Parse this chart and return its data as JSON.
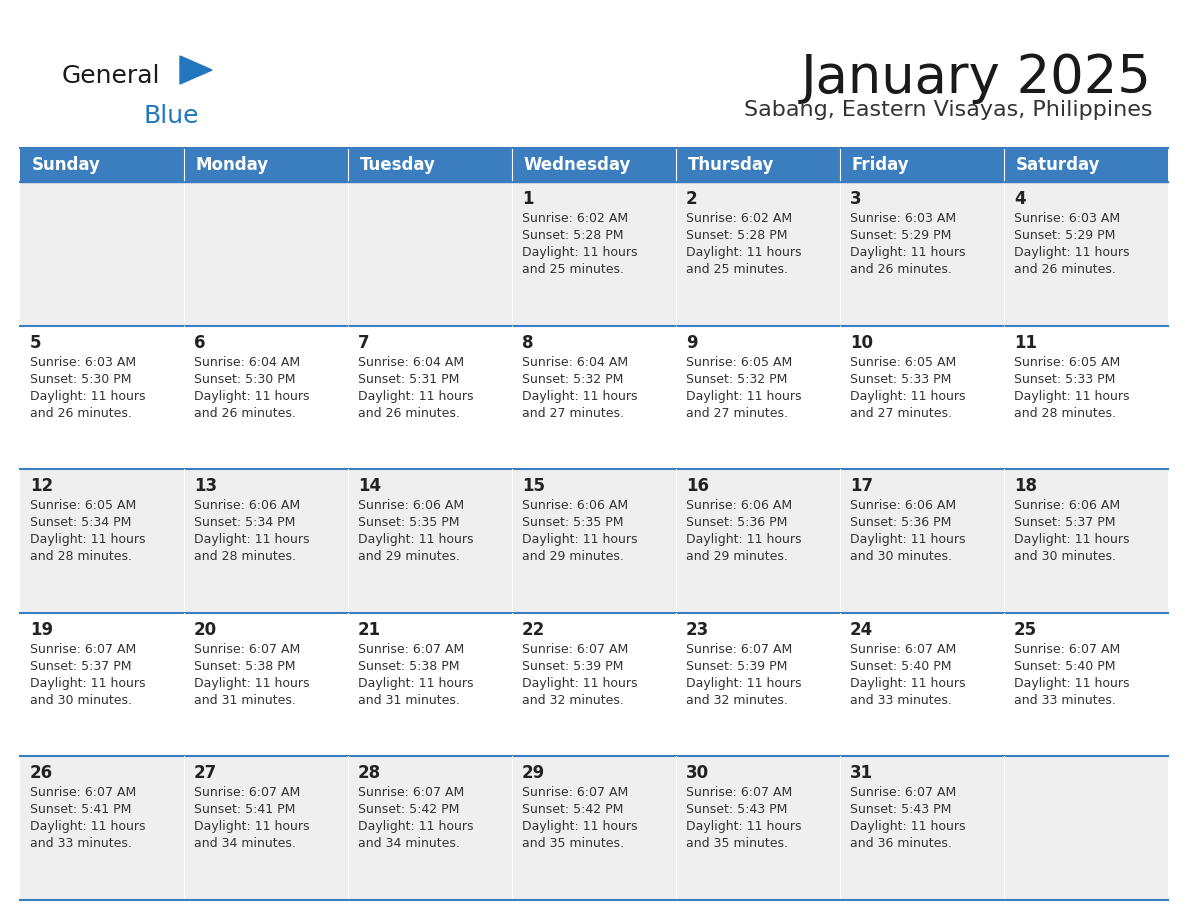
{
  "title": "January 2025",
  "subtitle": "Sabang, Eastern Visayas, Philippines",
  "header_color": "#3a7ebf",
  "header_text_color": "#ffffff",
  "cell_bg_row0": "#efefef",
  "cell_bg_row1": "#ffffff",
  "cell_bg_row2": "#efefef",
  "cell_bg_row3": "#ffffff",
  "cell_bg_row4": "#efefef",
  "day_number_color": "#222222",
  "text_color": "#333333",
  "line_color": "#3a7ebf",
  "days_of_week": [
    "Sunday",
    "Monday",
    "Tuesday",
    "Wednesday",
    "Thursday",
    "Friday",
    "Saturday"
  ],
  "calendar_data": [
    [
      {
        "day": null,
        "sunrise": null,
        "sunset": null,
        "daylight_line1": null,
        "daylight_line2": null
      },
      {
        "day": null,
        "sunrise": null,
        "sunset": null,
        "daylight_line1": null,
        "daylight_line2": null
      },
      {
        "day": null,
        "sunrise": null,
        "sunset": null,
        "daylight_line1": null,
        "daylight_line2": null
      },
      {
        "day": "1",
        "sunrise": "Sunrise: 6:02 AM",
        "sunset": "Sunset: 5:28 PM",
        "daylight_line1": "Daylight: 11 hours",
        "daylight_line2": "and 25 minutes."
      },
      {
        "day": "2",
        "sunrise": "Sunrise: 6:02 AM",
        "sunset": "Sunset: 5:28 PM",
        "daylight_line1": "Daylight: 11 hours",
        "daylight_line2": "and 25 minutes."
      },
      {
        "day": "3",
        "sunrise": "Sunrise: 6:03 AM",
        "sunset": "Sunset: 5:29 PM",
        "daylight_line1": "Daylight: 11 hours",
        "daylight_line2": "and 26 minutes."
      },
      {
        "day": "4",
        "sunrise": "Sunrise: 6:03 AM",
        "sunset": "Sunset: 5:29 PM",
        "daylight_line1": "Daylight: 11 hours",
        "daylight_line2": "and 26 minutes."
      }
    ],
    [
      {
        "day": "5",
        "sunrise": "Sunrise: 6:03 AM",
        "sunset": "Sunset: 5:30 PM",
        "daylight_line1": "Daylight: 11 hours",
        "daylight_line2": "and 26 minutes."
      },
      {
        "day": "6",
        "sunrise": "Sunrise: 6:04 AM",
        "sunset": "Sunset: 5:30 PM",
        "daylight_line1": "Daylight: 11 hours",
        "daylight_line2": "and 26 minutes."
      },
      {
        "day": "7",
        "sunrise": "Sunrise: 6:04 AM",
        "sunset": "Sunset: 5:31 PM",
        "daylight_line1": "Daylight: 11 hours",
        "daylight_line2": "and 26 minutes."
      },
      {
        "day": "8",
        "sunrise": "Sunrise: 6:04 AM",
        "sunset": "Sunset: 5:32 PM",
        "daylight_line1": "Daylight: 11 hours",
        "daylight_line2": "and 27 minutes."
      },
      {
        "day": "9",
        "sunrise": "Sunrise: 6:05 AM",
        "sunset": "Sunset: 5:32 PM",
        "daylight_line1": "Daylight: 11 hours",
        "daylight_line2": "and 27 minutes."
      },
      {
        "day": "10",
        "sunrise": "Sunrise: 6:05 AM",
        "sunset": "Sunset: 5:33 PM",
        "daylight_line1": "Daylight: 11 hours",
        "daylight_line2": "and 27 minutes."
      },
      {
        "day": "11",
        "sunrise": "Sunrise: 6:05 AM",
        "sunset": "Sunset: 5:33 PM",
        "daylight_line1": "Daylight: 11 hours",
        "daylight_line2": "and 28 minutes."
      }
    ],
    [
      {
        "day": "12",
        "sunrise": "Sunrise: 6:05 AM",
        "sunset": "Sunset: 5:34 PM",
        "daylight_line1": "Daylight: 11 hours",
        "daylight_line2": "and 28 minutes."
      },
      {
        "day": "13",
        "sunrise": "Sunrise: 6:06 AM",
        "sunset": "Sunset: 5:34 PM",
        "daylight_line1": "Daylight: 11 hours",
        "daylight_line2": "and 28 minutes."
      },
      {
        "day": "14",
        "sunrise": "Sunrise: 6:06 AM",
        "sunset": "Sunset: 5:35 PM",
        "daylight_line1": "Daylight: 11 hours",
        "daylight_line2": "and 29 minutes."
      },
      {
        "day": "15",
        "sunrise": "Sunrise: 6:06 AM",
        "sunset": "Sunset: 5:35 PM",
        "daylight_line1": "Daylight: 11 hours",
        "daylight_line2": "and 29 minutes."
      },
      {
        "day": "16",
        "sunrise": "Sunrise: 6:06 AM",
        "sunset": "Sunset: 5:36 PM",
        "daylight_line1": "Daylight: 11 hours",
        "daylight_line2": "and 29 minutes."
      },
      {
        "day": "17",
        "sunrise": "Sunrise: 6:06 AM",
        "sunset": "Sunset: 5:36 PM",
        "daylight_line1": "Daylight: 11 hours",
        "daylight_line2": "and 30 minutes."
      },
      {
        "day": "18",
        "sunrise": "Sunrise: 6:06 AM",
        "sunset": "Sunset: 5:37 PM",
        "daylight_line1": "Daylight: 11 hours",
        "daylight_line2": "and 30 minutes."
      }
    ],
    [
      {
        "day": "19",
        "sunrise": "Sunrise: 6:07 AM",
        "sunset": "Sunset: 5:37 PM",
        "daylight_line1": "Daylight: 11 hours",
        "daylight_line2": "and 30 minutes."
      },
      {
        "day": "20",
        "sunrise": "Sunrise: 6:07 AM",
        "sunset": "Sunset: 5:38 PM",
        "daylight_line1": "Daylight: 11 hours",
        "daylight_line2": "and 31 minutes."
      },
      {
        "day": "21",
        "sunrise": "Sunrise: 6:07 AM",
        "sunset": "Sunset: 5:38 PM",
        "daylight_line1": "Daylight: 11 hours",
        "daylight_line2": "and 31 minutes."
      },
      {
        "day": "22",
        "sunrise": "Sunrise: 6:07 AM",
        "sunset": "Sunset: 5:39 PM",
        "daylight_line1": "Daylight: 11 hours",
        "daylight_line2": "and 32 minutes."
      },
      {
        "day": "23",
        "sunrise": "Sunrise: 6:07 AM",
        "sunset": "Sunset: 5:39 PM",
        "daylight_line1": "Daylight: 11 hours",
        "daylight_line2": "and 32 minutes."
      },
      {
        "day": "24",
        "sunrise": "Sunrise: 6:07 AM",
        "sunset": "Sunset: 5:40 PM",
        "daylight_line1": "Daylight: 11 hours",
        "daylight_line2": "and 33 minutes."
      },
      {
        "day": "25",
        "sunrise": "Sunrise: 6:07 AM",
        "sunset": "Sunset: 5:40 PM",
        "daylight_line1": "Daylight: 11 hours",
        "daylight_line2": "and 33 minutes."
      }
    ],
    [
      {
        "day": "26",
        "sunrise": "Sunrise: 6:07 AM",
        "sunset": "Sunset: 5:41 PM",
        "daylight_line1": "Daylight: 11 hours",
        "daylight_line2": "and 33 minutes."
      },
      {
        "day": "27",
        "sunrise": "Sunrise: 6:07 AM",
        "sunset": "Sunset: 5:41 PM",
        "daylight_line1": "Daylight: 11 hours",
        "daylight_line2": "and 34 minutes."
      },
      {
        "day": "28",
        "sunrise": "Sunrise: 6:07 AM",
        "sunset": "Sunset: 5:42 PM",
        "daylight_line1": "Daylight: 11 hours",
        "daylight_line2": "and 34 minutes."
      },
      {
        "day": "29",
        "sunrise": "Sunrise: 6:07 AM",
        "sunset": "Sunset: 5:42 PM",
        "daylight_line1": "Daylight: 11 hours",
        "daylight_line2": "and 35 minutes."
      },
      {
        "day": "30",
        "sunrise": "Sunrise: 6:07 AM",
        "sunset": "Sunset: 5:43 PM",
        "daylight_line1": "Daylight: 11 hours",
        "daylight_line2": "and 35 minutes."
      },
      {
        "day": "31",
        "sunrise": "Sunrise: 6:07 AM",
        "sunset": "Sunset: 5:43 PM",
        "daylight_line1": "Daylight: 11 hours",
        "daylight_line2": "and 36 minutes."
      },
      {
        "day": null,
        "sunrise": null,
        "sunset": null,
        "daylight_line1": null,
        "daylight_line2": null
      }
    ]
  ],
  "logo_general_color": "#1a1a1a",
  "logo_blue_color": "#2176bd",
  "logo_triangle_color": "#2176bd",
  "title_fontsize": 38,
  "subtitle_fontsize": 16,
  "header_fontsize": 12,
  "day_num_fontsize": 12,
  "cell_text_fontsize": 9
}
